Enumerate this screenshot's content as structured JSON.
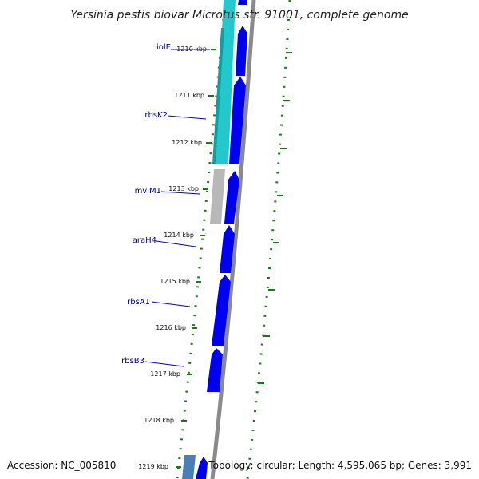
{
  "header": {
    "title": "Yersinia pestis biovar Microtus str. 91001, complete genome"
  },
  "footer": {
    "accession": "Accession: NC_005810",
    "topology": "Topology: circular; Length: 4,595,065 bp; Genes: 3,991"
  },
  "ticks": [
    {
      "label": "1210 kbp"
    },
    {
      "label": "1211 kbp"
    },
    {
      "label": "1212 kbp"
    },
    {
      "label": "1213 kbp"
    },
    {
      "label": "1214 kbp"
    },
    {
      "label": "1215 kbp"
    },
    {
      "label": "1216 kbp"
    },
    {
      "label": "1217 kbp"
    },
    {
      "label": "1218 kbp"
    },
    {
      "label": "1219 kbp"
    }
  ],
  "genes": [
    {
      "label": "iolE"
    },
    {
      "label": "rbsK2"
    },
    {
      "label": "mviM1"
    },
    {
      "label": "araH4"
    },
    {
      "label": "rbsA1"
    },
    {
      "label": "rbsB3"
    }
  ],
  "colors": {
    "cds": "#0000ee",
    "cog_cyan": "#22c8cc",
    "cog_gray": "#b8b8b8",
    "cog_steel": "#4a7fb5",
    "gc_dots": "#1a7a1a",
    "backbone": "#8a8a8a",
    "label_line": "#0000cc"
  }
}
